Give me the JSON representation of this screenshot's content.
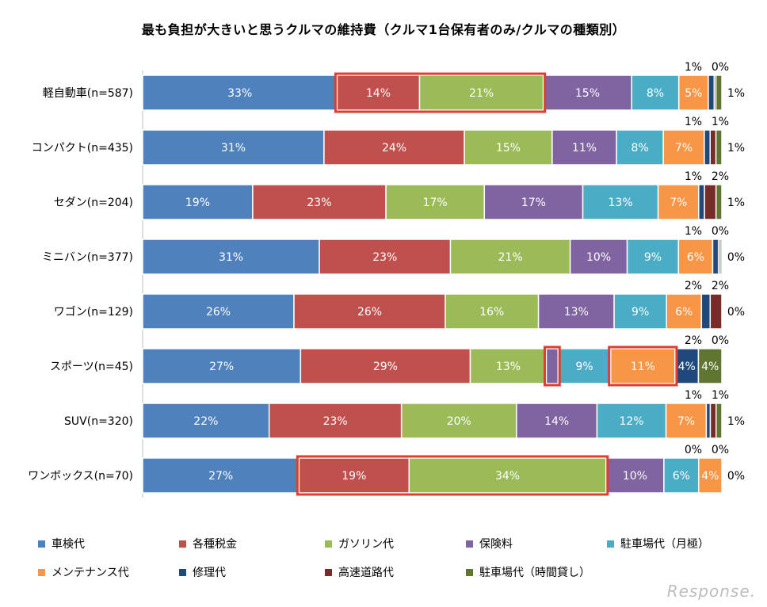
{
  "chart_data": {
    "type": "bar",
    "orientation": "horizontal-stacked-100",
    "title": "最も負担が大きいと思うクルマの維持費（クルマ1台保有者のみ/クルマの種類別）",
    "categories": [
      "軽自動車(n=587)",
      "コンパクト(n=435)",
      "セダン(n=204)",
      "ミニバン(n=377)",
      "ワゴン(n=129)",
      "スポーツ(n=45)",
      "SUV(n=320)",
      "ワンボックス(n=70)"
    ],
    "series": [
      {
        "name": "車検代",
        "color": "#4f81bd",
        "values": [
          33,
          31,
          19,
          31,
          26,
          27,
          22,
          27
        ],
        "labels": [
          "33%",
          "31%",
          "19%",
          "31%",
          "26%",
          "27%",
          "22%",
          "27%"
        ]
      },
      {
        "name": "各種税金",
        "color": "#c0504d",
        "values": [
          14,
          24,
          23,
          23,
          26,
          29,
          23,
          19
        ],
        "labels": [
          "14%",
          "24%",
          "23%",
          "23%",
          "26%",
          "29%",
          "23%",
          "19%"
        ]
      },
      {
        "name": "ガソリン代",
        "color": "#9bbb59",
        "values": [
          21,
          15,
          17,
          21,
          16,
          13,
          20,
          34
        ],
        "labels": [
          "21%",
          "15%",
          "17%",
          "21%",
          "16%",
          "13%",
          "20%",
          "34%"
        ]
      },
      {
        "name": "保険料",
        "color": "#8064a2",
        "values": [
          15,
          11,
          17,
          10,
          13,
          2,
          14,
          10
        ],
        "labels": [
          "15%",
          "11%",
          "17%",
          "10%",
          "13%",
          "2%",
          "14%",
          "10%"
        ]
      },
      {
        "name": "駐車場代（月極）",
        "color": "#4bacc6",
        "values": [
          8,
          8,
          13,
          9,
          9,
          9,
          12,
          6
        ],
        "labels": [
          "8%",
          "8%",
          "13%",
          "9%",
          "9%",
          "9%",
          "12%",
          "6%"
        ]
      },
      {
        "name": "メンテナンス代",
        "color": "#f79646",
        "values": [
          5,
          7,
          7,
          6,
          6,
          11,
          7,
          4
        ],
        "labels": [
          "5%",
          "7%",
          "7%",
          "6%",
          "6%",
          "11%",
          "7%",
          "4%"
        ]
      },
      {
        "name": "修理代",
        "color": "#1f497d",
        "values": [
          1,
          1,
          1,
          1,
          1.5,
          4,
          0.7,
          0
        ],
        "labels": [
          "1%",
          "1%",
          "1%",
          "1%",
          "2%",
          "4%",
          "1%",
          "0%"
        ]
      },
      {
        "name": "高速道路代",
        "color": "#772c2a",
        "values": [
          0.3,
          1,
          2,
          0.3,
          2,
          0,
          1,
          0
        ],
        "labels": [
          "0%",
          "1%",
          "2%",
          "0%",
          "2%",
          "0%",
          "1%",
          "0%"
        ]
      },
      {
        "name": "駐車場代（時間貸し）",
        "color": "#5f7530",
        "values": [
          1,
          1,
          1,
          0.3,
          0,
          4,
          1,
          0
        ],
        "labels": [
          "1%",
          "1%",
          "1%",
          "0%",
          "0%",
          "4%",
          "1%",
          "0%"
        ]
      }
    ],
    "highlights": [
      {
        "category": "軽自動車(n=587)",
        "series": [
          "各種税金",
          "ガソリン代"
        ]
      },
      {
        "category": "スポーツ(n=45)",
        "series": [
          "保険料"
        ]
      },
      {
        "category": "スポーツ(n=45)",
        "series": [
          "メンテナンス代"
        ]
      },
      {
        "category": "ワンボックス(n=70)",
        "series": [
          "各種税金",
          "ガソリン代"
        ]
      }
    ],
    "highlight_color": "#e03c31",
    "xlim": [
      0,
      100
    ],
    "legend": "bottom"
  },
  "watermark": "Response."
}
